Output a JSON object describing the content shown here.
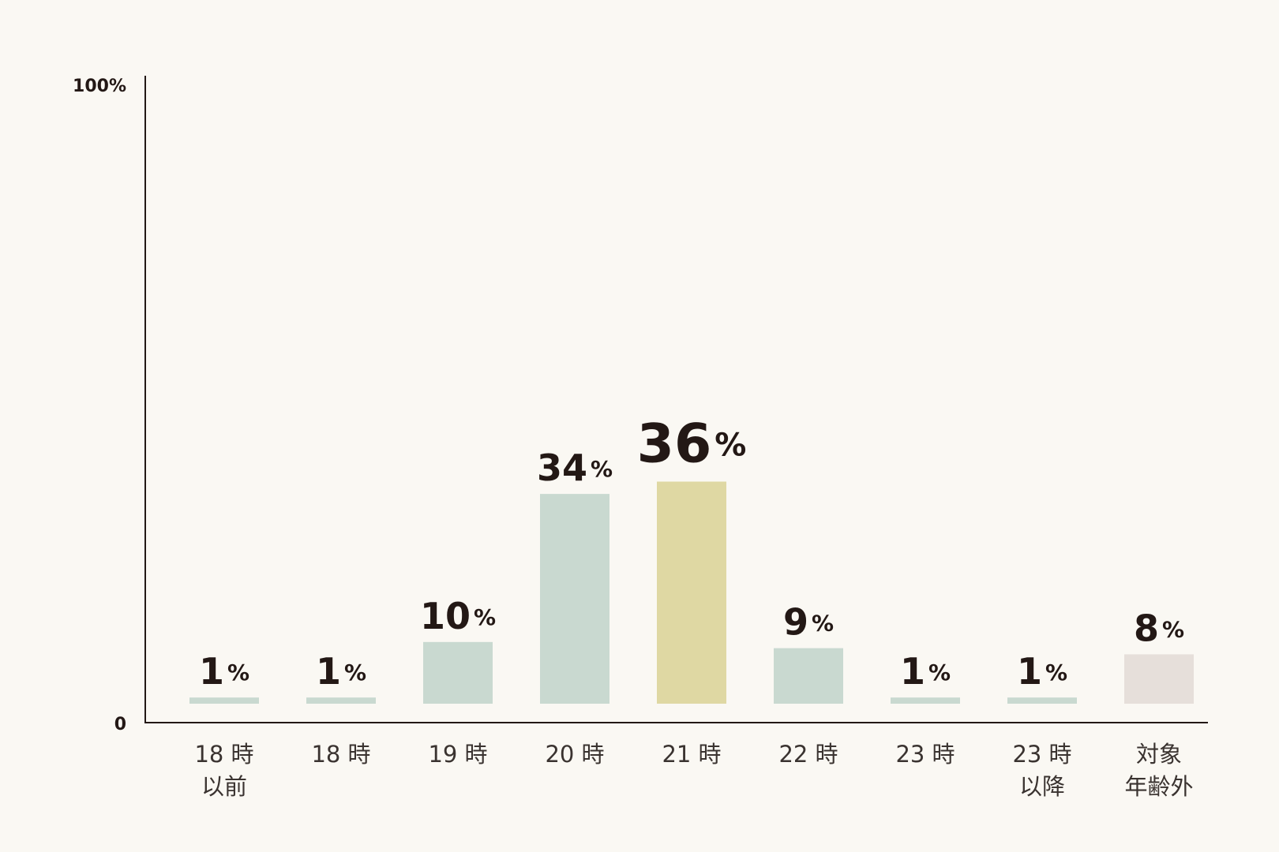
{
  "chart_data": {
    "type": "bar",
    "categories": [
      "18 時\n以前",
      "18 時",
      "19 時",
      "20 時",
      "21 時",
      "22 時",
      "23 時",
      "23 時\n以降",
      "対象\n年齢外"
    ],
    "values": [
      1,
      1,
      10,
      34,
      36,
      9,
      1,
      1,
      8
    ],
    "value_labels": [
      "1%",
      "1%",
      "10%",
      "34%",
      "36%",
      "9%",
      "1%",
      "1%",
      "8%"
    ],
    "colors": [
      "#c9d9d0",
      "#c9d9d0",
      "#c9d9d0",
      "#c9d9d0",
      "#dfd8a3",
      "#c9d9d0",
      "#c9d9d0",
      "#c9d9d0",
      "#e6dfda"
    ],
    "ylim": [
      0,
      100
    ],
    "yticks": [
      0,
      {
        "value": 100,
        "label": "100%"
      }
    ]
  }
}
